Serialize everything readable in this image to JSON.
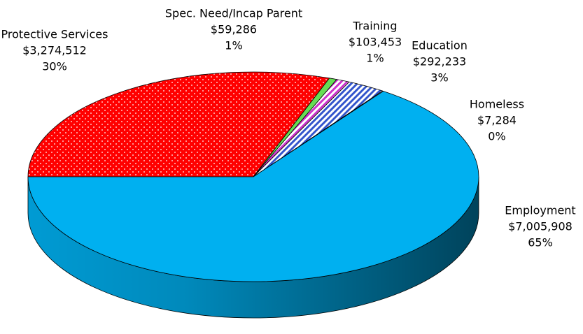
{
  "chart_data": {
    "type": "pie3d",
    "categories": [
      "Protective Services",
      "Spec. Need/Incap Parent",
      "Training",
      "Education",
      "Homeless",
      "Employment"
    ],
    "values": [
      3274512,
      59286,
      103453,
      292233,
      7284,
      7005908
    ],
    "value_labels": [
      "$3,274,512",
      "$59,286",
      "$103,453",
      "$292,233",
      "$7,284",
      "$7,005,908"
    ],
    "percent_labels": [
      "30%",
      "1%",
      "1%",
      "3%",
      "0%",
      "65%"
    ],
    "colors": [
      "#ff0000",
      "#66dd55",
      "#cc33cc",
      "#3355cc",
      "#ffffff",
      "#00b0f0"
    ],
    "patterns": [
      "dots",
      "solid",
      "stripes",
      "stripes",
      "solid",
      "solid"
    ]
  }
}
